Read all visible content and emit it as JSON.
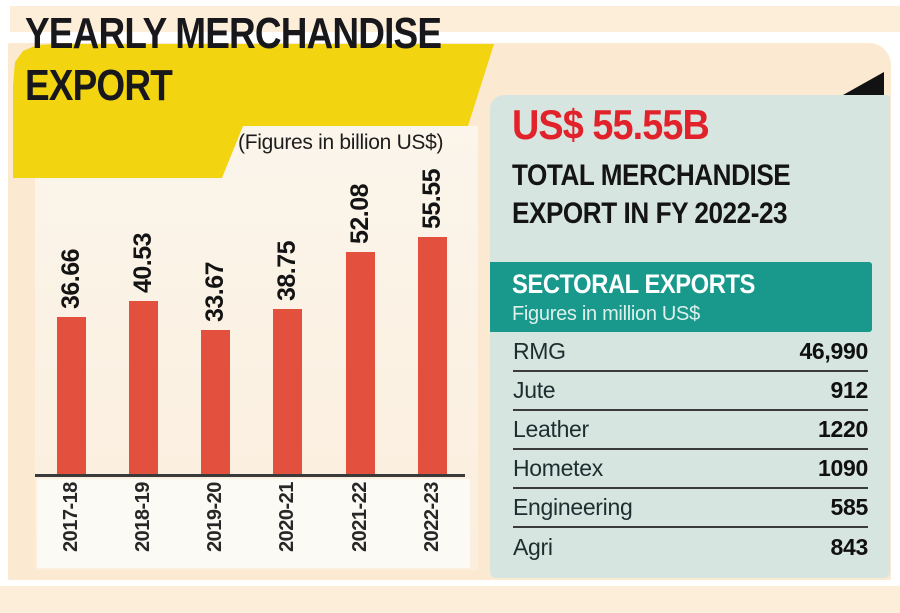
{
  "header": {
    "title_line1": "YEARLY MERCHANDISE",
    "title_line2": "EXPORT",
    "subtitle": "(Figures in billion US$)"
  },
  "chart_data": {
    "type": "bar",
    "title": "YEARLY MERCHANDISE EXPORT",
    "subtitle": "(Figures in billion US$)",
    "categories": [
      "2017-18",
      "2018-19",
      "2019-20",
      "2020-21",
      "2021-22",
      "2022-23"
    ],
    "values": [
      36.66,
      40.53,
      33.67,
      38.75,
      52.08,
      55.55
    ],
    "value_label_format": "2-decimals",
    "unit": "billion US$",
    "ylim": [
      0,
      60
    ],
    "grid": false,
    "legend": false,
    "bar_color": "#e4503e",
    "orientation": "vertical",
    "tick_label_rotation": 90,
    "value_label_rotation": 90
  },
  "summary": {
    "amount": "US$ 55.55B",
    "line1": "TOTAL MERCHANDISE",
    "line2": "EXPORT IN FY 2022-23"
  },
  "sectoral": {
    "header": "SECTORAL EXPORTS",
    "subheader": "Figures in million US$",
    "unit": "million US$",
    "rows": [
      {
        "sector": "RMG",
        "value": "46,990"
      },
      {
        "sector": "Jute",
        "value": "912"
      },
      {
        "sector": "Leather",
        "value": "1220"
      },
      {
        "sector": "Hometex",
        "value": "1090"
      },
      {
        "sector": "Engineering",
        "value": "585"
      },
      {
        "sector": "Agri",
        "value": "843"
      }
    ]
  },
  "colors": {
    "banner_yellow": "#f2d411",
    "bar_red": "#e4503e",
    "amount_red": "#e2222a",
    "teal_band": "#18998c",
    "panel_teal": "#d7e5e1",
    "cream": "#fbe9d1"
  }
}
